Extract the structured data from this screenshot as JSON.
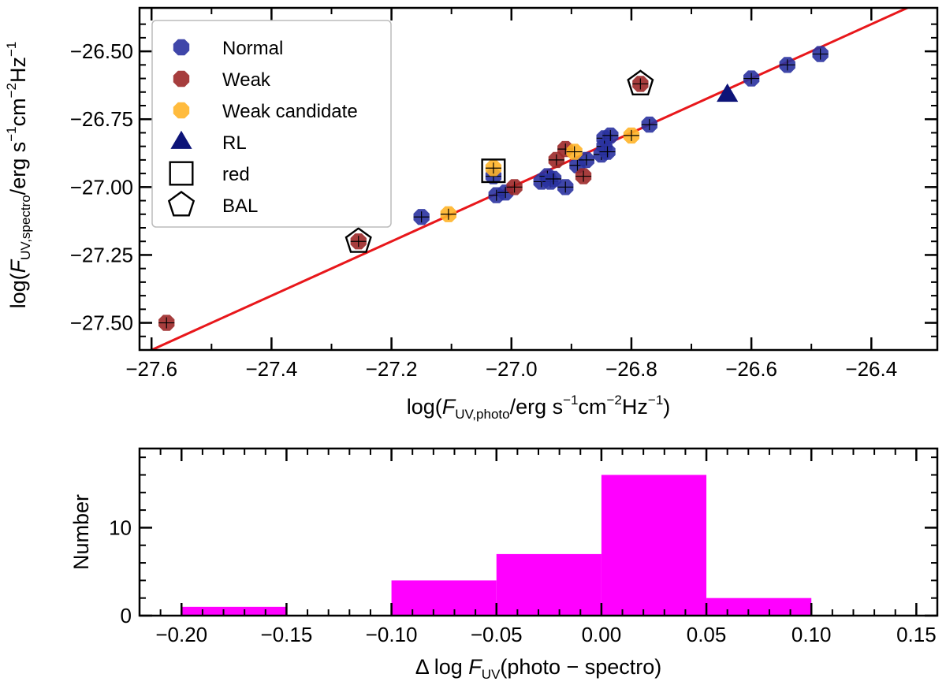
{
  "chart_data": [
    {
      "type": "scatter",
      "xlabel": "log(F_UV,photo/erg s^-1 cm^-2 Hz^-1)",
      "ylabel": "log(F_UV,spectro/erg s^-1 cm^-2 Hz^-1)",
      "xlim": [
        -27.62,
        -26.29
      ],
      "ylim": [
        -27.6,
        -26.34
      ],
      "xticks": [
        -27.6,
        -27.4,
        -27.2,
        -27.0,
        -26.8,
        -26.6,
        -26.4
      ],
      "xtick_labels": [
        "−27.6",
        "−27.4",
        "−27.2",
        "−27.0",
        "−26.8",
        "−26.6",
        "−26.4"
      ],
      "yticks": [
        -26.5,
        -26.75,
        -27.0,
        -27.25,
        -27.5
      ],
      "ytick_labels": [
        "−26.50",
        "−26.75",
        "−27.00",
        "−27.25",
        "−27.50"
      ],
      "fit_line": {
        "color": "#e8171b",
        "slope": 1.0,
        "intercept": 0.0
      },
      "legend": {
        "position": "top-left",
        "entries": [
          {
            "label": "Normal",
            "marker": "octagon",
            "color": "#2a32a0"
          },
          {
            "label": "Weak",
            "marker": "octagon",
            "color": "#9c2828"
          },
          {
            "label": "Weak candidate",
            "marker": "octagon",
            "color": "#ffb428"
          },
          {
            "label": "RL",
            "marker": "triangle",
            "color": "#0d1478"
          },
          {
            "label": "red",
            "marker": "square-open",
            "color": "#000000"
          },
          {
            "label": "BAL",
            "marker": "pentagon-open",
            "color": "#000000"
          }
        ]
      },
      "series": [
        {
          "name": "Normal",
          "points": [
            [
              -27.15,
              -27.11
            ],
            [
              -27.03,
              -26.96
            ],
            [
              -27.025,
              -27.03
            ],
            [
              -27.01,
              -27.02
            ],
            [
              -26.95,
              -26.98
            ],
            [
              -26.94,
              -26.96
            ],
            [
              -26.935,
              -26.98
            ],
            [
              -26.93,
              -26.97
            ],
            [
              -26.91,
              -27.0
            ],
            [
              -26.89,
              -26.92
            ],
            [
              -26.875,
              -26.9
            ],
            [
              -26.85,
              -26.88
            ],
            [
              -26.845,
              -26.85
            ],
            [
              -26.845,
              -26.82
            ],
            [
              -26.84,
              -26.87
            ],
            [
              -26.835,
              -26.81
            ],
            [
              -26.77,
              -26.77
            ],
            [
              -26.6,
              -26.6
            ],
            [
              -26.54,
              -26.55
            ],
            [
              -26.485,
              -26.51
            ]
          ]
        },
        {
          "name": "Weak",
          "points": [
            [
              -27.575,
              -27.5
            ],
            [
              -27.255,
              -27.2
            ],
            [
              -26.995,
              -27.0
            ],
            [
              -26.925,
              -26.9
            ],
            [
              -26.91,
              -26.86
            ],
            [
              -26.88,
              -26.96
            ],
            [
              -26.785,
              -26.62
            ]
          ]
        },
        {
          "name": "Weak candidate",
          "points": [
            [
              -27.105,
              -27.1
            ],
            [
              -27.03,
              -26.93
            ],
            [
              -26.895,
              -26.87
            ],
            [
              -26.8,
              -26.81
            ]
          ]
        },
        {
          "name": "RL",
          "points": [
            [
              -26.64,
              -26.66
            ]
          ]
        },
        {
          "name": "red",
          "points": [
            [
              -27.03,
              -26.94
            ]
          ]
        },
        {
          "name": "BAL",
          "points": [
            [
              -27.255,
              -27.2
            ],
            [
              -26.785,
              -26.62
            ]
          ]
        }
      ]
    },
    {
      "type": "bar",
      "xlabel": "Δ log F_UV(photo − spectro)",
      "ylabel": "Number",
      "xlim": [
        -0.22,
        0.16
      ],
      "ylim": [
        0,
        19
      ],
      "xticks": [
        -0.2,
        -0.15,
        -0.1,
        -0.05,
        0.0,
        0.05,
        0.1,
        0.15
      ],
      "xtick_labels": [
        "−0.20",
        "−0.15",
        "−0.10",
        "−0.05",
        "0.00",
        "0.05",
        "0.10",
        "0.15"
      ],
      "yticks": [
        0,
        10
      ],
      "ytick_labels": [
        "0",
        "10"
      ],
      "bar_color": "#ff00ff",
      "bins": [
        {
          "from": -0.2,
          "to": -0.15,
          "count": 1
        },
        {
          "from": -0.15,
          "to": -0.1,
          "count": 0
        },
        {
          "from": -0.1,
          "to": -0.05,
          "count": 4
        },
        {
          "from": -0.05,
          "to": 0.0,
          "count": 7
        },
        {
          "from": 0.0,
          "to": 0.05,
          "count": 16
        },
        {
          "from": 0.05,
          "to": 0.1,
          "count": 2
        }
      ]
    }
  ]
}
